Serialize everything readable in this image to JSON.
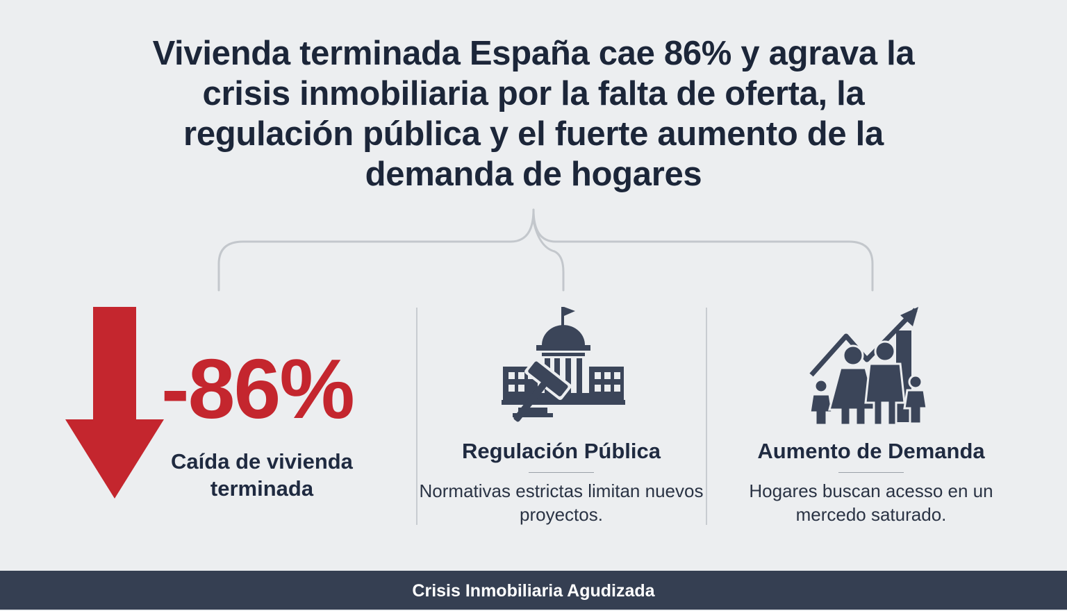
{
  "headline": "Vivienda terminada España cae 86% y agrava la crisis inmobiliaria por la falta de oferta, la regulación pública y el fuerte aumento de la demanda de hogares",
  "colors": {
    "background": "#eceef0",
    "accent_red": "#c4262e",
    "icon_navy": "#3b4559",
    "text_dark": "#1f2a40",
    "footer_bg": "#353f52"
  },
  "columns": [
    {
      "icon": "down-arrow-icon",
      "stat": "-86%",
      "caption": "Caída de vivienda terminada"
    },
    {
      "icon": "government-gavel-icon",
      "title": "Regulación Pública",
      "description": "Normativas estrictas limitan nuevos proyectos."
    },
    {
      "icon": "family-growth-icon",
      "title": "Aumento de Demanda",
      "description": "Hogares buscan acesso en un mercedo saturado."
    }
  ],
  "footer": "Crisis Inmobiliaria Agudizada"
}
